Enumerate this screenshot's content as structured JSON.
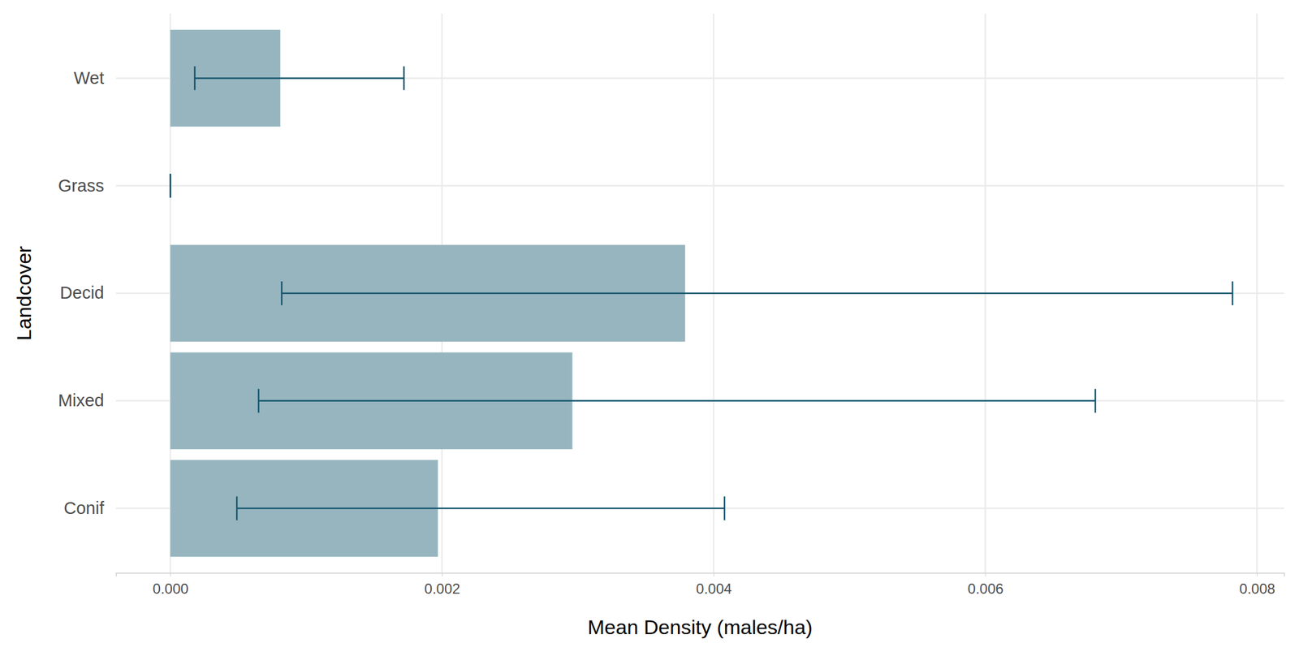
{
  "chart_data": {
    "type": "bar",
    "orientation": "horizontal",
    "x_label": "Mean Density (males/ha)",
    "y_label": "Landcover",
    "categories": [
      "Wet",
      "Grass",
      "Decid",
      "Mixed",
      "Conif"
    ],
    "values": [
      0.00081,
      0,
      0.00379,
      0.00296,
      0.00197
    ],
    "ci_lower": [
      0.00018,
      0,
      0.00082,
      0.00065,
      0.00049
    ],
    "ci_upper": [
      0.00172,
      0,
      0.00782,
      0.00681,
      0.00408
    ],
    "color": "#97b5bf",
    "error_color": "#14566e",
    "xlim": [
      -0.0004,
      0.0082
    ],
    "xticks": [
      {
        "value": 0,
        "label": "0.000"
      },
      {
        "value": 0.002,
        "label": "0.002"
      },
      {
        "value": 0.004,
        "label": "0.004"
      },
      {
        "value": 0.006,
        "label": "0.006"
      },
      {
        "value": 0.008,
        "label": "0.008"
      }
    ],
    "grid": true
  }
}
